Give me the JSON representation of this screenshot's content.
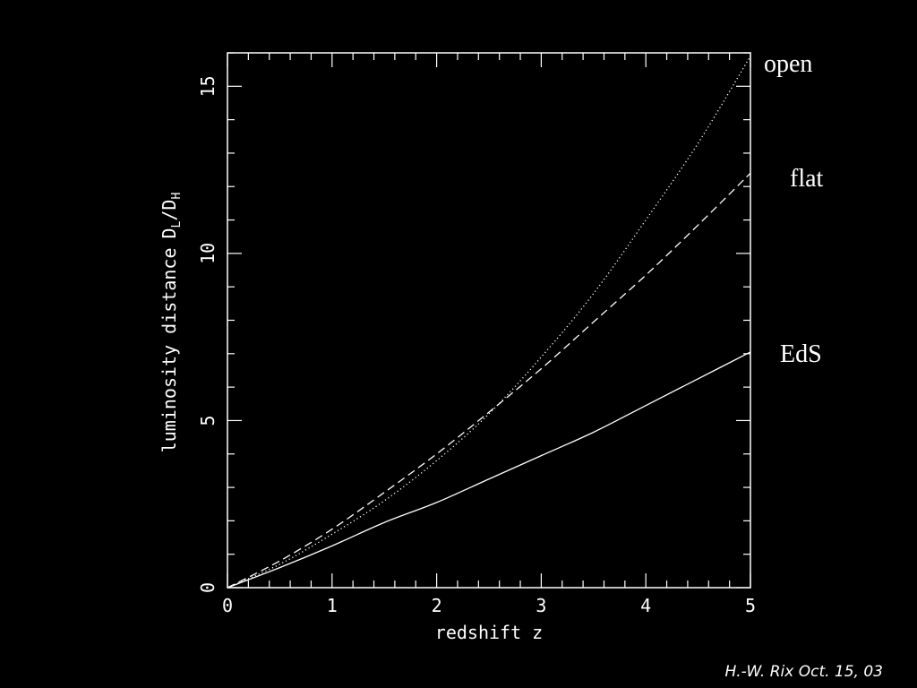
{
  "credit": "H.-W. Rix Oct. 15, 03",
  "chart_data": {
    "type": "line",
    "xlabel": "redshift z",
    "ylabel": "luminosity distance",
    "ylabel_symbol": "D",
    "ylabel_sub_num": "L",
    "ylabel_sep": "/D",
    "ylabel_sub_den": "H",
    "xlim": [
      0,
      5
    ],
    "ylim": [
      0,
      16
    ],
    "xticks": [
      0,
      1,
      2,
      3,
      4,
      5
    ],
    "yticks": [
      0,
      5,
      10,
      15
    ],
    "x_minor_step": 0.2,
    "y_minor_step": 1,
    "grid": false,
    "foreground": "#ffffff",
    "background": "#000000",
    "series": [
      {
        "name": "open",
        "style": "dotted",
        "x": [
          0,
          0.5,
          1,
          1.5,
          2,
          2.5,
          3,
          3.5,
          4,
          4.5,
          5
        ],
        "y": [
          0,
          0.7,
          1.6,
          2.6,
          3.8,
          5.2,
          6.9,
          8.8,
          11.0,
          13.3,
          15.9
        ]
      },
      {
        "name": "flat",
        "style": "dashed",
        "x": [
          0,
          0.5,
          1,
          1.5,
          2,
          2.5,
          3,
          3.5,
          4,
          4.5,
          5
        ],
        "y": [
          0,
          0.8,
          1.75,
          2.85,
          4.0,
          5.25,
          6.55,
          7.95,
          9.35,
          10.85,
          12.4
        ]
      },
      {
        "name": "EdS",
        "style": "solid",
        "x": [
          0,
          0.5,
          1,
          1.5,
          2,
          2.5,
          3,
          3.5,
          4,
          4.5,
          5
        ],
        "y": [
          0,
          0.6,
          1.25,
          1.95,
          2.55,
          3.25,
          3.95,
          4.65,
          5.45,
          6.25,
          7.05
        ]
      }
    ]
  }
}
